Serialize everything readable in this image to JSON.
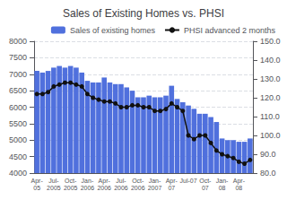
{
  "chart_data": {
    "type": "bar",
    "title": "Sales of Existing Homes vs. PHSI",
    "categories": [
      "Apr-\n05",
      null,
      null,
      "Jul-\n2005",
      null,
      null,
      "Oct-\n2005",
      null,
      null,
      "Jan-\n2006",
      null,
      null,
      "Apr-\n2006",
      null,
      null,
      "Jul-\n2006",
      null,
      null,
      "Oct-\n2006",
      null,
      null,
      "Jan-\n2007",
      null,
      null,
      "Apr-\n07",
      null,
      null,
      "Jul-07",
      null,
      null,
      "Oct-\n07",
      null,
      null,
      "Jan-\n08",
      null,
      null,
      "Apr-\n08",
      null,
      null
    ],
    "series": [
      {
        "name": "Sales of existing homes",
        "type": "bar",
        "values": [
          7100,
          7050,
          7100,
          7200,
          7250,
          7200,
          7250,
          7200,
          7050,
          6800,
          6750,
          6750,
          6900,
          6750,
          6700,
          6700,
          6600,
          6500,
          6300,
          6300,
          6350,
          6300,
          6300,
          6350,
          6650,
          6250,
          6150,
          6050,
          5950,
          5800,
          5800,
          5700,
          5550,
          5050,
          5000,
          5000,
          4950,
          4950,
          5050
        ]
      },
      {
        "name": "PHSI advanced 2 months",
        "type": "line",
        "axis": "y2",
        "color": "#111111",
        "marker": "circle",
        "values": [
          122,
          122,
          123,
          126,
          127,
          128,
          128,
          127,
          126,
          122,
          120,
          119,
          118,
          118,
          117,
          115,
          115,
          116,
          116,
          115,
          115,
          113,
          113,
          114,
          117,
          115,
          113,
          100,
          98,
          100,
          100,
          96,
          92,
          90,
          89,
          88,
          86,
          85,
          87
        ]
      }
    ],
    "ylim": [
      4000,
      8000
    ],
    "yticks": [
      4000,
      4500,
      5000,
      5500,
      6000,
      6500,
      7000,
      7500,
      8000
    ],
    "y2lim": [
      80.0,
      150.0
    ],
    "y2ticks": [
      {
        "value": 80,
        "label": "80.0"
      },
      {
        "value": 90,
        "label": "90.0"
      },
      {
        "value": 100,
        "label": "100.0"
      },
      {
        "value": 110,
        "label": "110.0"
      },
      {
        "value": 120,
        "label": "120.0"
      },
      {
        "value": 130,
        "label": "130.0"
      },
      {
        "value": 140,
        "label": "140.0"
      },
      {
        "value": 150,
        "label": "150.0"
      }
    ],
    "grid": true,
    "legend": "upper right"
  }
}
